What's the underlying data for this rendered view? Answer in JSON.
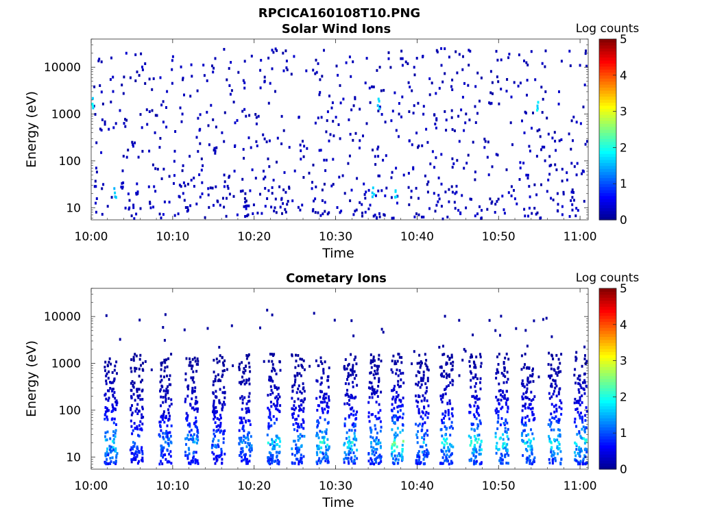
{
  "figure_title": "RPCICA160108T10.PNG",
  "colormap": {
    "name": "jet",
    "stops": [
      "#00008f",
      "#0000ff",
      "#0080ff",
      "#00ffff",
      "#80ff80",
      "#ffff00",
      "#ff8000",
      "#ff0000",
      "#800000"
    ]
  },
  "chart_data": [
    {
      "type": "heatmap",
      "title": "Solar Wind Ions",
      "xlabel": "Time",
      "ylabel": "Energy (eV)",
      "x_tick_labels": [
        "10:00",
        "10:10",
        "10:20",
        "10:30",
        "10:40",
        "10:50",
        "11:00"
      ],
      "x_range_min": [
        0,
        61
      ],
      "y_tick_labels": [
        "10",
        "100",
        "1000",
        "10000"
      ],
      "y_range_eV": [
        5.5,
        40000
      ],
      "y_scale": "log",
      "colorbar": {
        "label": "Log counts",
        "range": [
          0,
          5
        ],
        "ticks": [
          "0",
          "1",
          "2",
          "3",
          "4",
          "5"
        ]
      },
      "typical_log_counts": 0.1,
      "features": [
        {
          "time_min": 0.1,
          "energy_eV": 1700,
          "log_counts": 1.9
        },
        {
          "time_min": 2.8,
          "energy_eV": 20,
          "log_counts": 1.8
        },
        {
          "time_min": 34.5,
          "energy_eV": 20,
          "log_counts": 1.8
        },
        {
          "time_min": 35.2,
          "energy_eV": 1600,
          "log_counts": 1.9
        },
        {
          "time_min": 37.3,
          "energy_eV": 20,
          "log_counts": 1.9
        },
        {
          "time_min": 54.6,
          "energy_eV": 1600,
          "log_counts": 1.9
        }
      ]
    },
    {
      "type": "heatmap",
      "title": "Cometary Ions",
      "xlabel": "Time",
      "ylabel": "Energy (eV)",
      "x_tick_labels": [
        "10:00",
        "10:10",
        "10:20",
        "10:30",
        "10:40",
        "10:50",
        "11:00"
      ],
      "x_range_min": [
        0,
        61
      ],
      "y_tick_labels": [
        "10",
        "100",
        "1000",
        "10000"
      ],
      "y_range_eV": [
        5.5,
        40000
      ],
      "y_scale": "log",
      "colorbar": {
        "label": "Log counts",
        "range": [
          0,
          5
        ],
        "ticks": [
          "0",
          "1",
          "2",
          "3",
          "4",
          "5"
        ]
      },
      "burst_times_min": [
        2.3,
        5.5,
        9.0,
        12.2,
        15.5,
        18.8,
        22.3,
        25.3,
        28.3,
        31.7,
        34.7,
        37.5,
        40.5,
        43.5,
        47.0,
        50.3,
        53.5,
        56.8,
        60.0
      ],
      "burst_peak_log_counts": [
        1.9,
        1.2,
        1.4,
        1.6,
        1.3,
        1.4,
        1.9,
        1.6,
        2.1,
        2.0,
        1.9,
        2.5,
        1.8,
        2.0,
        2.1,
        2.1,
        2.0,
        2.0,
        2.1
      ],
      "peak_energy_eV": 20,
      "upper_extent_eV": 1000
    }
  ]
}
